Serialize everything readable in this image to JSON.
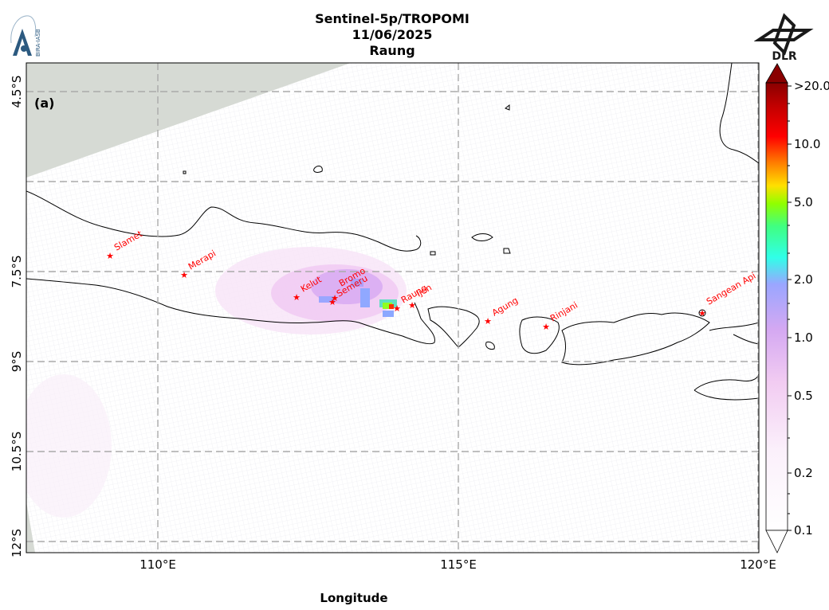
{
  "header": {
    "title_line1": "Sentinel-5p/TROPOMI",
    "title_line2": "11/06/2025",
    "title_line3": "Raung"
  },
  "logos": {
    "left": {
      "icon": "bira-iasb-logo",
      "text": "BIRA-IASB"
    },
    "right": {
      "icon": "dlr-logo",
      "text": "DLR"
    }
  },
  "map": {
    "panel_label": "(a)",
    "xlabel": "Longitude",
    "x_ticks": [
      "110°E",
      "115°E",
      "120°E"
    ],
    "y_ticks": [
      "4.5°S",
      "7.5°S",
      "9°S",
      "10.5°S",
      "12°S"
    ],
    "gridlines": true,
    "colors": {
      "coastline": "#000000",
      "volcano_marker": "#ff0000",
      "volcano_label": "#ff0000",
      "no_data_region": "#d6dad4",
      "gridline": "#aaaaaa"
    },
    "volcanoes": [
      {
        "name": "Slamet"
      },
      {
        "name": "Merapi"
      },
      {
        "name": "Kelut"
      },
      {
        "name": "Semeru"
      },
      {
        "name": "Bromo"
      },
      {
        "name": "Raung"
      },
      {
        "name": "Ijen"
      },
      {
        "name": "Agung"
      },
      {
        "name": "Rinjani"
      },
      {
        "name": "Sangean Api"
      }
    ]
  },
  "colorbar": {
    "scale": "log",
    "extend": "both",
    "tick_labels": [
      ">20.0",
      "10.0",
      "5.0",
      "2.0",
      "1.0",
      "0.5",
      "0.2",
      "0.1"
    ],
    "colors": [
      "#ffffff",
      "#f0c8f0",
      "#c8a0f0",
      "#8ca0ff",
      "#30ffe8",
      "#80ff00",
      "#ffe000",
      "#ff8000",
      "#ff0000",
      "#c00000",
      "#800000"
    ]
  }
}
